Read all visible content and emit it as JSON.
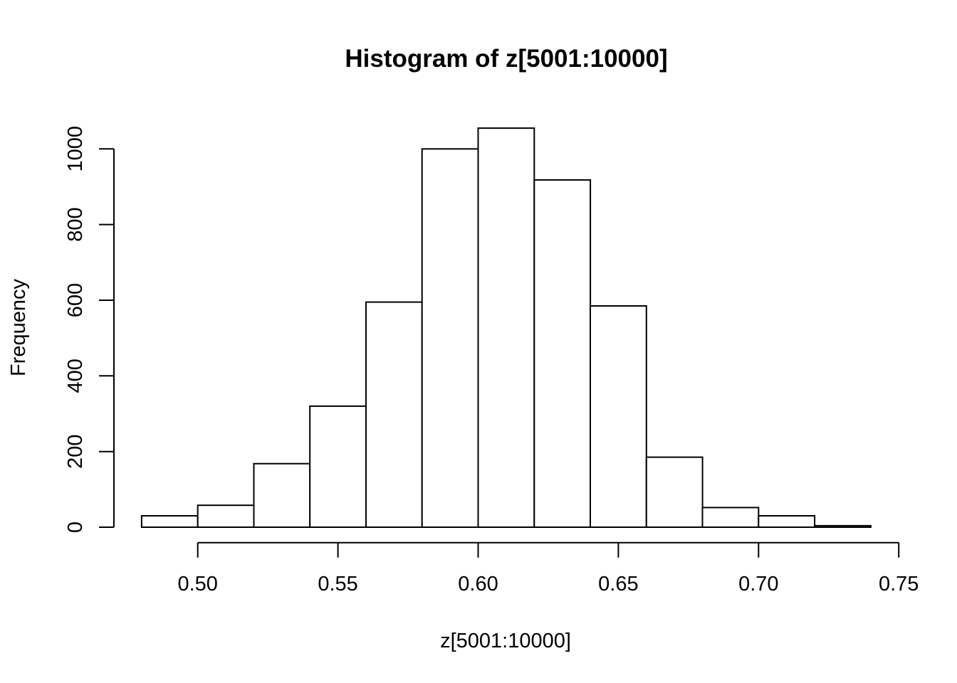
{
  "figure": {
    "background_color": "#ffffff",
    "foreground_color": "#000000"
  },
  "chart_data": {
    "type": "bar",
    "subtype": "histogram",
    "title": "Histogram of z[5001:10000]",
    "xlabel": "z[5001:10000]",
    "ylabel": "Frequency",
    "breaks": [
      0.48,
      0.5,
      0.52,
      0.54,
      0.56,
      0.58,
      0.6,
      0.62,
      0.64,
      0.66,
      0.68,
      0.7,
      0.72,
      0.74
    ],
    "counts": [
      30,
      58,
      168,
      320,
      595,
      1000,
      1055,
      918,
      585,
      185,
      52,
      30,
      4
    ],
    "xlim": [
      0.48,
      0.75
    ],
    "ylim": [
      0,
      1055
    ],
    "x_ticks": {
      "values": [
        0.5,
        0.55,
        0.6,
        0.65,
        0.7,
        0.75
      ],
      "labels": [
        "0.50",
        "0.55",
        "0.60",
        "0.65",
        "0.70",
        "0.75"
      ]
    },
    "y_ticks": {
      "values": [
        0,
        200,
        400,
        600,
        800,
        1000
      ],
      "labels": [
        "0",
        "200",
        "400",
        "600",
        "800",
        "1000"
      ]
    },
    "grid": false,
    "legend_position": "none",
    "bar_fill": "#ffffff",
    "bar_stroke": "#000000"
  }
}
